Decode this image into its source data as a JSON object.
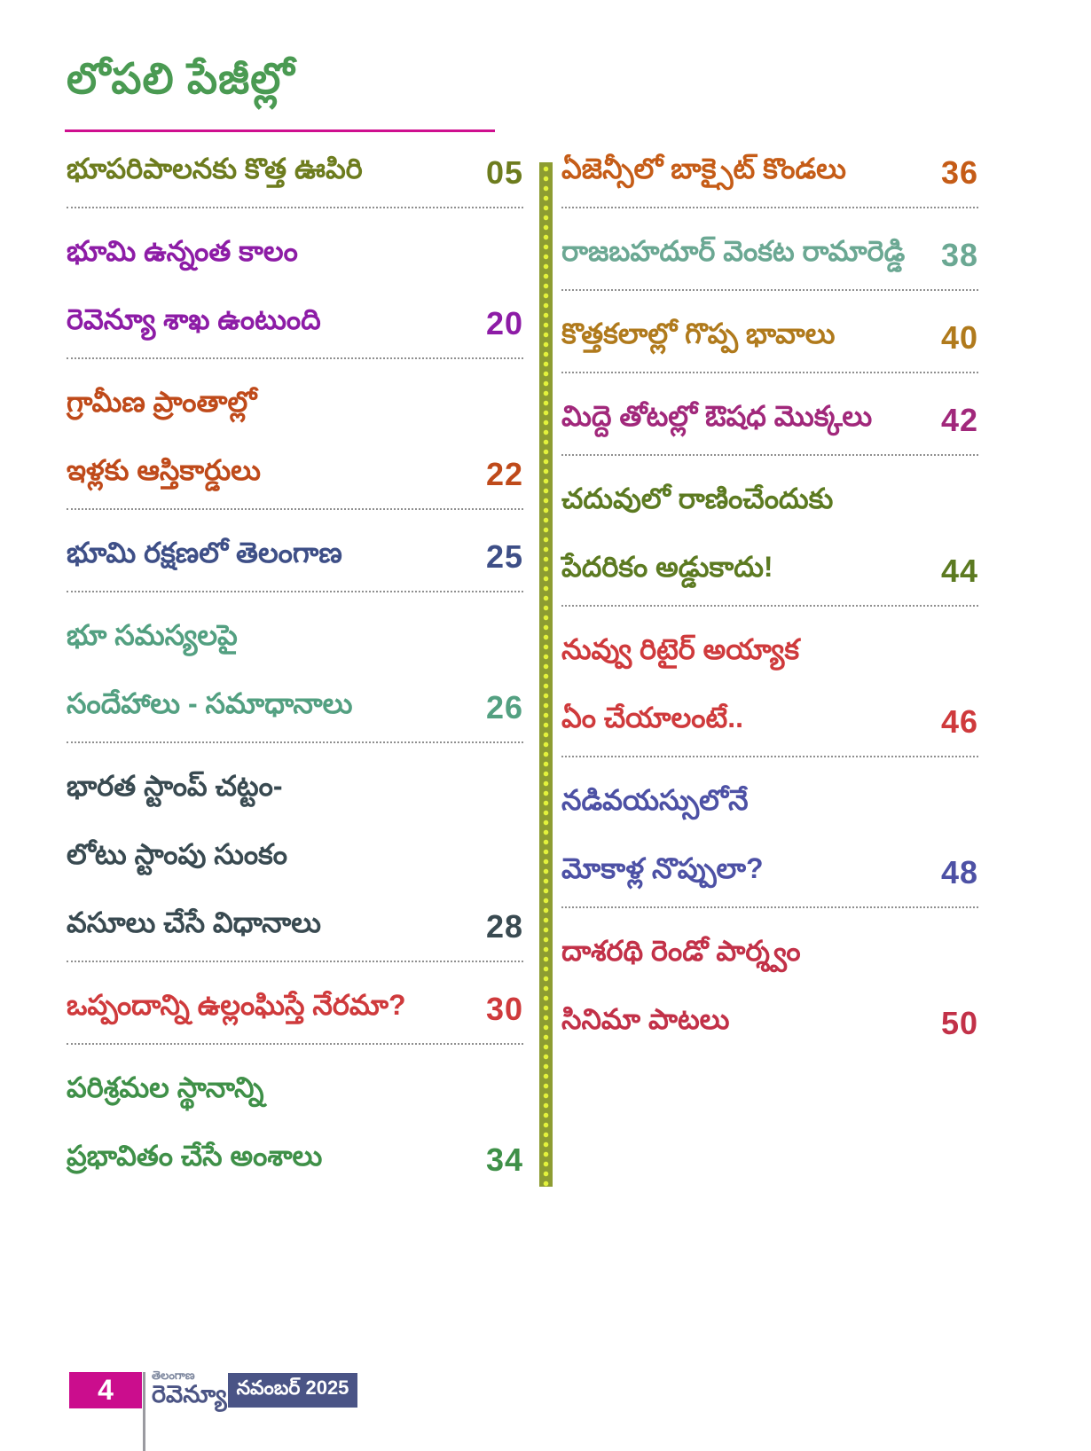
{
  "title": {
    "text": "లోపలి పేజీల్లో"
  },
  "colors": {
    "title": "#4a9a52",
    "title_rule": "#cf0f8f",
    "divider_bar": "#8d9c32",
    "divider_dot": "#e3f23c",
    "separator_dots": "#8f8f8f",
    "footer_page_box": "#cb0d8d",
    "footer_date_box": "#4a5486",
    "logo_main": "#4c5585",
    "logo_top": "#7d879e"
  },
  "toc": {
    "left": [
      {
        "lines": [
          "భూపరిపాలనకు కొత్త ఊపిరి"
        ],
        "page": "05",
        "color": "#6d7c1e"
      },
      {
        "lines": [
          "భూమి ఉన్నంత కాలం",
          "రెవెన్యూ శాఖ ఉంటుంది"
        ],
        "page": "20",
        "color": "#8d1ca6"
      },
      {
        "lines": [
          "గ్రామీణ ప్రాంతాల్లో",
          "ఇళ్లకు ఆస్తికార్డులు"
        ],
        "page": "22",
        "color": "#bf4a1a"
      },
      {
        "lines": [
          "భూమి రక్షణలో తెలంగాణ"
        ],
        "page": "25",
        "color": "#3e4f87"
      },
      {
        "lines": [
          "భూ సమస్యలపై",
          "సందేహాలు - సమాధానాలు"
        ],
        "page": "26",
        "color": "#53a081"
      },
      {
        "lines": [
          "భారత స్టాంప్ చట్టం-",
          "లోటు స్టాంపు సుంకం",
          "వసూలు చేసే విధానాలు"
        ],
        "page": "28",
        "color": "#394a51"
      },
      {
        "lines": [
          "ఒప్పందాన్ని ఉల్లంఘిస్తే నేరమా?"
        ],
        "page": "30",
        "color": "#cf3a3c"
      },
      {
        "lines": [
          "పరిశ్రమల స్థానాన్ని",
          "ప్రభావితం చేసే అంశాలు"
        ],
        "page": "34",
        "color": "#3f9048"
      }
    ],
    "right": [
      {
        "lines": [
          "ఏజెన్సీలో బాక్సైట్ కొండలు"
        ],
        "page": "36",
        "color": "#c55c17"
      },
      {
        "lines": [
          "రాజబహదూర్ వెంకట రామారెడ్డి"
        ],
        "page": "38",
        "color": "#6ba893"
      },
      {
        "lines": [
          "కొత్తకలాల్లో గొప్ప భావాలు"
        ],
        "page": "40",
        "color": "#b07a1c"
      },
      {
        "lines": [
          "మిద్దె తోటల్లో ఔషధ మొక్కలు"
        ],
        "page": "42",
        "color": "#a1287b"
      },
      {
        "lines": [
          "చదువులో రాణించేందుకు",
          "పేదరికం అడ్డుకాదు!"
        ],
        "page": "44",
        "color": "#5c7a21"
      },
      {
        "lines": [
          "నువ్వు రిటైర్ అయ్యాక",
          "ఏం చేయాలంటే.."
        ],
        "page": "46",
        "color": "#cf3a3c"
      },
      {
        "lines": [
          "నడివయస్సులోనే",
          "మోకాళ్ల నొప్పులా?"
        ],
        "page": "48",
        "color": "#4d51a5"
      },
      {
        "lines": [
          "దాశరథి రెండో పార్శ్వం",
          "సినిమా పాటలు"
        ],
        "page": "50",
        "color": "#c23148"
      }
    ]
  },
  "footer": {
    "page_number": "4",
    "logo_top": "తెలంగాణ",
    "logo_main": "రెవెన్యూ",
    "issue": "నవంబర్ 2025"
  }
}
